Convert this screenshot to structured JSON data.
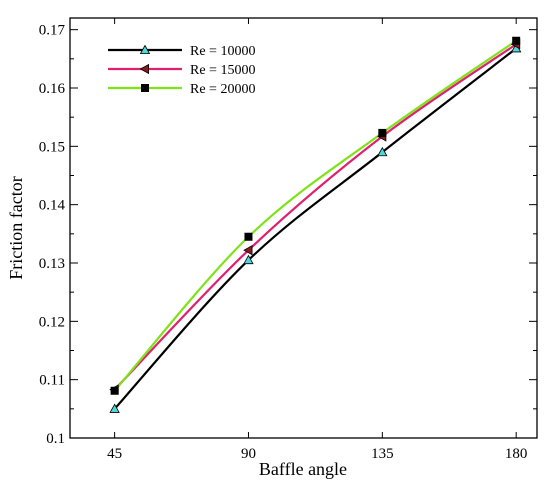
{
  "chart_data": {
    "type": "line",
    "xlabel": "Baffle angle",
    "ylabel": "Friction factor",
    "x": [
      45,
      90,
      135,
      180
    ],
    "xticks": [
      "45",
      "90",
      "135",
      "180"
    ],
    "xlim": [
      30,
      187
    ],
    "ylim": [
      0.1,
      0.172
    ],
    "yticks": [
      "0.1",
      "0.11",
      "0.12",
      "0.13",
      "0.14",
      "0.15",
      "0.16",
      "0.17"
    ],
    "grid": false,
    "legend_position": "top-left",
    "series": [
      {
        "name": "Re = 10000",
        "values": [
          0.105,
          0.1305,
          0.149,
          0.1668
        ],
        "color": "#000000",
        "marker": "triangle-up",
        "marker_color": "#4fd6d8"
      },
      {
        "name": "Re = 15000",
        "values": [
          0.1083,
          0.1322,
          0.1517,
          0.1675
        ],
        "color": "#e0206e",
        "marker": "triangle-left",
        "marker_color": "#8b1a1a"
      },
      {
        "name": "Re = 20000",
        "values": [
          0.1081,
          0.1345,
          0.1523,
          0.1681
        ],
        "color": "#7fe31a",
        "marker": "square",
        "marker_color": "#000000"
      }
    ]
  }
}
